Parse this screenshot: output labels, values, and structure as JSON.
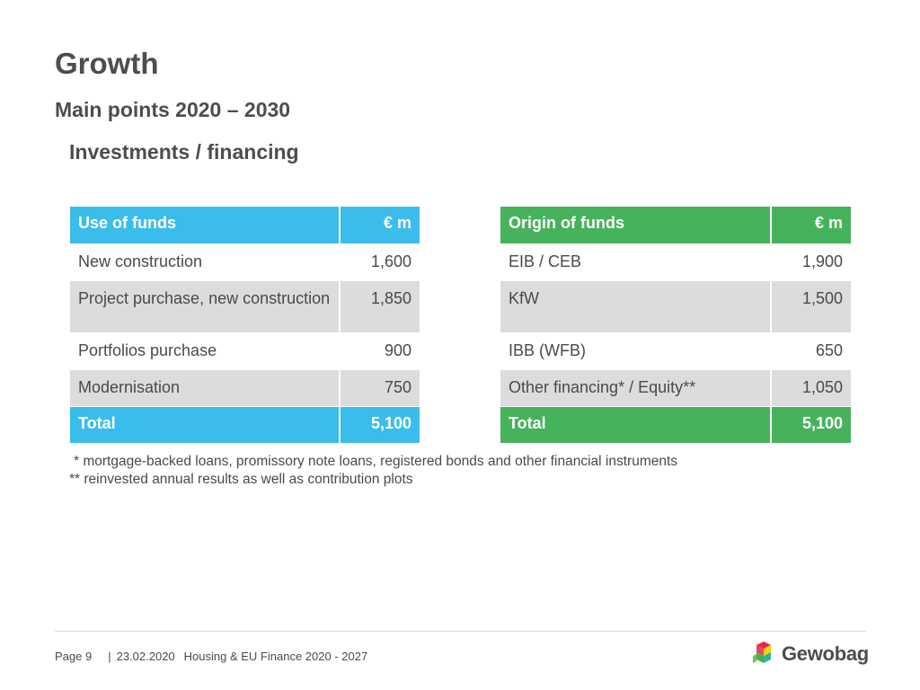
{
  "title": "Growth",
  "subtitle": "Main points 2020 – 2030",
  "section_heading": "Investments / financing",
  "use_of_funds": {
    "header_label": "Use of funds",
    "header_unit": "€ m",
    "rows": [
      {
        "label": "New construction",
        "value": "1,600"
      },
      {
        "label": "Project purchase, new construction",
        "value": "1,850"
      },
      {
        "label": "Portfolios purchase",
        "value": "900"
      },
      {
        "label": "Modernisation",
        "value": "750"
      }
    ],
    "total_label": "Total",
    "total_value": "5,100"
  },
  "origin_of_funds": {
    "header_label": "Origin of funds",
    "header_unit": "€ m",
    "rows": [
      {
        "label": "EIB / CEB",
        "value": "1,900"
      },
      {
        "label": "KfW",
        "value": "1,500"
      },
      {
        "label": "IBB (WFB)",
        "value": "650"
      },
      {
        "label": "Other financing* / Equity**",
        "value": "1,050"
      }
    ],
    "total_label": "Total",
    "total_value": "5,100"
  },
  "footnotes": [
    "* mortgage-backed loans, promissory note loans, registered bonds and other financial instruments",
    "** reinvested annual results as well as contribution plots"
  ],
  "footer": {
    "page": "Page 9",
    "separator": "|",
    "date": "23.02.2020",
    "document": "Housing & EU Finance 2020 - 2027"
  },
  "logo": {
    "wordmark": "Gewobag",
    "colors": {
      "red": "#e5244b",
      "yellow": "#f5d400",
      "green": "#46b04a",
      "teal": "#2db3a5",
      "blue": "#3bbdec"
    }
  },
  "colors": {
    "use_accent": "#3bbdec",
    "origin_accent": "#47b25c",
    "row_shade": "#dcdcdc"
  }
}
